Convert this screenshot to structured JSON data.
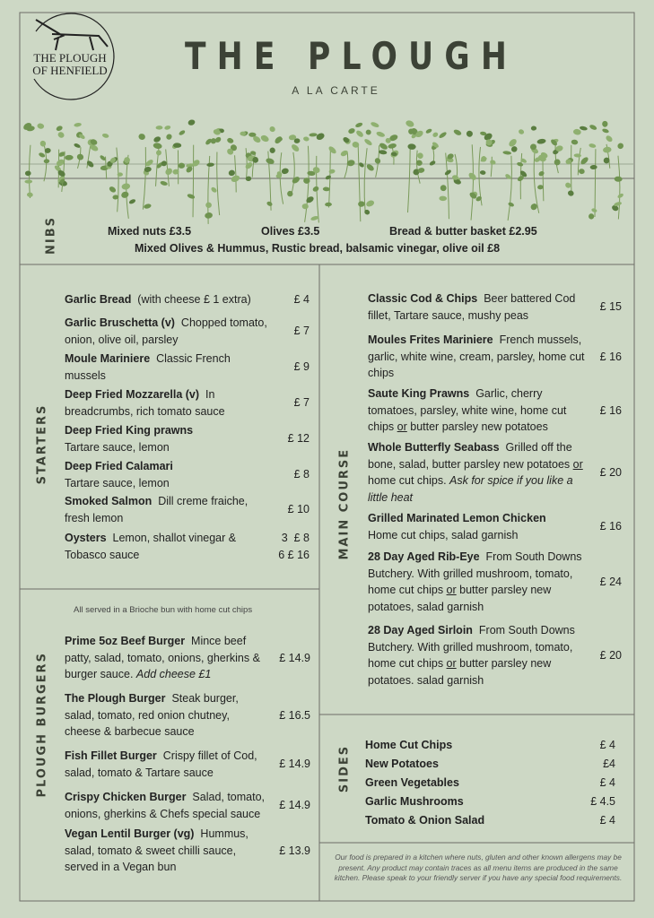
{
  "header": {
    "logo_lines": [
      "THE PLOUGH",
      "OF HENFIELD"
    ],
    "title": "THE PLOUGH",
    "subtitle": "A LA CARTE"
  },
  "nibs": {
    "label": "NIBS",
    "items": [
      "Mixed nuts £3.5",
      "Olives £3.5",
      "Bread & butter basket £2.95"
    ],
    "platter": "Mixed Olives & Hummus, Rustic bread, balsamic vinegar, olive oil  £8"
  },
  "starters": {
    "label": "STARTERS",
    "items": [
      {
        "name": "Garlic Bread",
        "desc": [
          {
            "text": "(with cheese £ 1 extra)",
            "style": "plain"
          }
        ],
        "price": [
          "£ 4"
        ]
      },
      {
        "name": "Garlic Bruschetta (v)",
        "desc": [
          {
            "text": "Chopped tomato, onion, olive oil, parsley",
            "style": "plain"
          }
        ],
        "price": [
          "£ 7"
        ]
      },
      {
        "name": "Moule Mariniere",
        "desc": [
          {
            "text": "Classic French mussels",
            "style": "plain"
          }
        ],
        "price": [
          "£ 9"
        ]
      },
      {
        "name": "Deep Fried Mozzarella (v)",
        "desc": [
          {
            "text": "In breadcrumbs, rich tomato sauce",
            "style": "plain"
          }
        ],
        "price": [
          "£ 7"
        ]
      },
      {
        "name": "Deep Fried King prawns",
        "desc": [
          {
            "text": "Tartare sauce, lemon",
            "style": "plain"
          }
        ],
        "price": [
          "£ 12"
        ]
      },
      {
        "name": "Deep Fried Calamari",
        "desc": [
          {
            "text": "Tartare sauce, lemon",
            "style": "plain"
          }
        ],
        "price": [
          "£ 8"
        ]
      },
      {
        "name": "Smoked Salmon",
        "desc": [
          {
            "text": "Dill creme fraiche, fresh lemon",
            "style": "plain"
          }
        ],
        "price": [
          "£ 10"
        ]
      },
      {
        "name": "Oysters",
        "desc": [
          {
            "text": "Lemon, shallot vinegar & Tobasco sauce",
            "style": "plain"
          }
        ],
        "price": [
          "3  £ 8",
          "6 £ 16"
        ]
      }
    ]
  },
  "burgers": {
    "label": "PLOUGH BURGERS",
    "note": "All served in a Brioche bun with home cut chips",
    "items": [
      {
        "name": "Prime 5oz Beef Burger",
        "desc": [
          {
            "text": "Mince beef patty, salad, tomato, onions, gherkins & burger sauce. ",
            "style": "plain"
          },
          {
            "text": "Add cheese £1",
            "style": "italic"
          }
        ],
        "price": [
          "£ 14.9"
        ]
      },
      {
        "name": "The Plough Burger",
        "desc": [
          {
            "text": "Steak burger, salad, tomato, red onion chutney, cheese & barbecue sauce",
            "style": "plain"
          }
        ],
        "price": [
          "£ 16.5"
        ]
      },
      {
        "name": "Fish Fillet Burger",
        "desc": [
          {
            "text": "Crispy fillet of Cod, salad, tomato & Tartare sauce",
            "style": "plain"
          }
        ],
        "price": [
          "£ 14.9"
        ]
      },
      {
        "name": "Crispy Chicken Burger",
        "desc": [
          {
            "text": "Salad, tomato, onions, gherkins & Chefs special sauce",
            "style": "plain"
          }
        ],
        "price": [
          "£ 14.9"
        ]
      },
      {
        "name": "Vegan Lentil Burger (vg)",
        "desc": [
          {
            "text": "Hummus, salad, tomato & sweet chilli sauce, served in a Vegan bun",
            "style": "plain"
          }
        ],
        "price": [
          "£ 13.9"
        ]
      }
    ]
  },
  "main_course": {
    "label": "MAIN COURSE",
    "items": [
      {
        "name": "Classic Cod & Chips",
        "desc": [
          {
            "text": "Beer battered Cod fillet, Tartare sauce, mushy peas",
            "style": "plain"
          }
        ],
        "price": [
          "£ 15"
        ]
      },
      {
        "name": "Moules Frites Mariniere",
        "desc": [
          {
            "text": "French mussels, garlic, white wine, cream, parsley, home cut chips",
            "style": "plain"
          }
        ],
        "price": [
          "£ 16"
        ]
      },
      {
        "name": "Saute King Prawns",
        "desc": [
          {
            "text": "Garlic, cherry tomatoes, parsley, white wine, home cut chips ",
            "style": "plain"
          },
          {
            "text": "or",
            "style": "underline"
          },
          {
            "text": " butter parsley new potatoes",
            "style": "plain"
          }
        ],
        "price": [
          "£ 16"
        ]
      },
      {
        "name": "Whole Butterfly Seabass",
        "desc": [
          {
            "text": "Grilled off the bone, salad, butter parsley new potatoes ",
            "style": "plain"
          },
          {
            "text": "or",
            "style": "underline"
          },
          {
            "text": " home cut chips. ",
            "style": "plain"
          },
          {
            "text": "Ask for spice if you like a little heat",
            "style": "italic"
          }
        ],
        "price": [
          "£ 20"
        ]
      },
      {
        "name": "Grilled Marinated Lemon Chicken",
        "desc": [
          {
            "text": "Home cut chips, salad garnish",
            "style": "plain"
          }
        ],
        "price": [
          "£ 16"
        ]
      },
      {
        "name": "28 Day Aged Rib-Eye",
        "desc": [
          {
            "text": "From South Downs Butchery. With grilled mushroom, tomato, home cut chips ",
            "style": "plain"
          },
          {
            "text": "or",
            "style": "underline"
          },
          {
            "text": " butter parsley new potatoes, salad garnish",
            "style": "plain"
          }
        ],
        "price": [
          "£ 24"
        ]
      },
      {
        "name": "28 Day Aged Sirloin",
        "desc": [
          {
            "text": "From South Downs Butchery. With grilled mushroom, tomato, home cut chips ",
            "style": "plain"
          },
          {
            "text": "or",
            "style": "underline"
          },
          {
            "text": " butter parsley new potatoes. salad garnish",
            "style": "plain"
          }
        ],
        "price": [
          "£ 20"
        ]
      }
    ]
  },
  "sides": {
    "label": "SIDES",
    "items": [
      {
        "name": "Home Cut Chips",
        "price": "£ 4"
      },
      {
        "name": "New Potatoes",
        "price": "£4"
      },
      {
        "name": "Green Vegetables",
        "price": "£ 4"
      },
      {
        "name": "Garlic Mushrooms",
        "price": "£ 4.5"
      },
      {
        "name": "Tomato & Onion Salad",
        "price": "£ 4"
      }
    ]
  },
  "footer": "Our food is prepared in a kitchen where nuts, gluten and other known allergens may be present. Any product may contain traces as all menu items are produced in the same kitchen. Please speak to your friendly server if you have any special food requirements."
}
